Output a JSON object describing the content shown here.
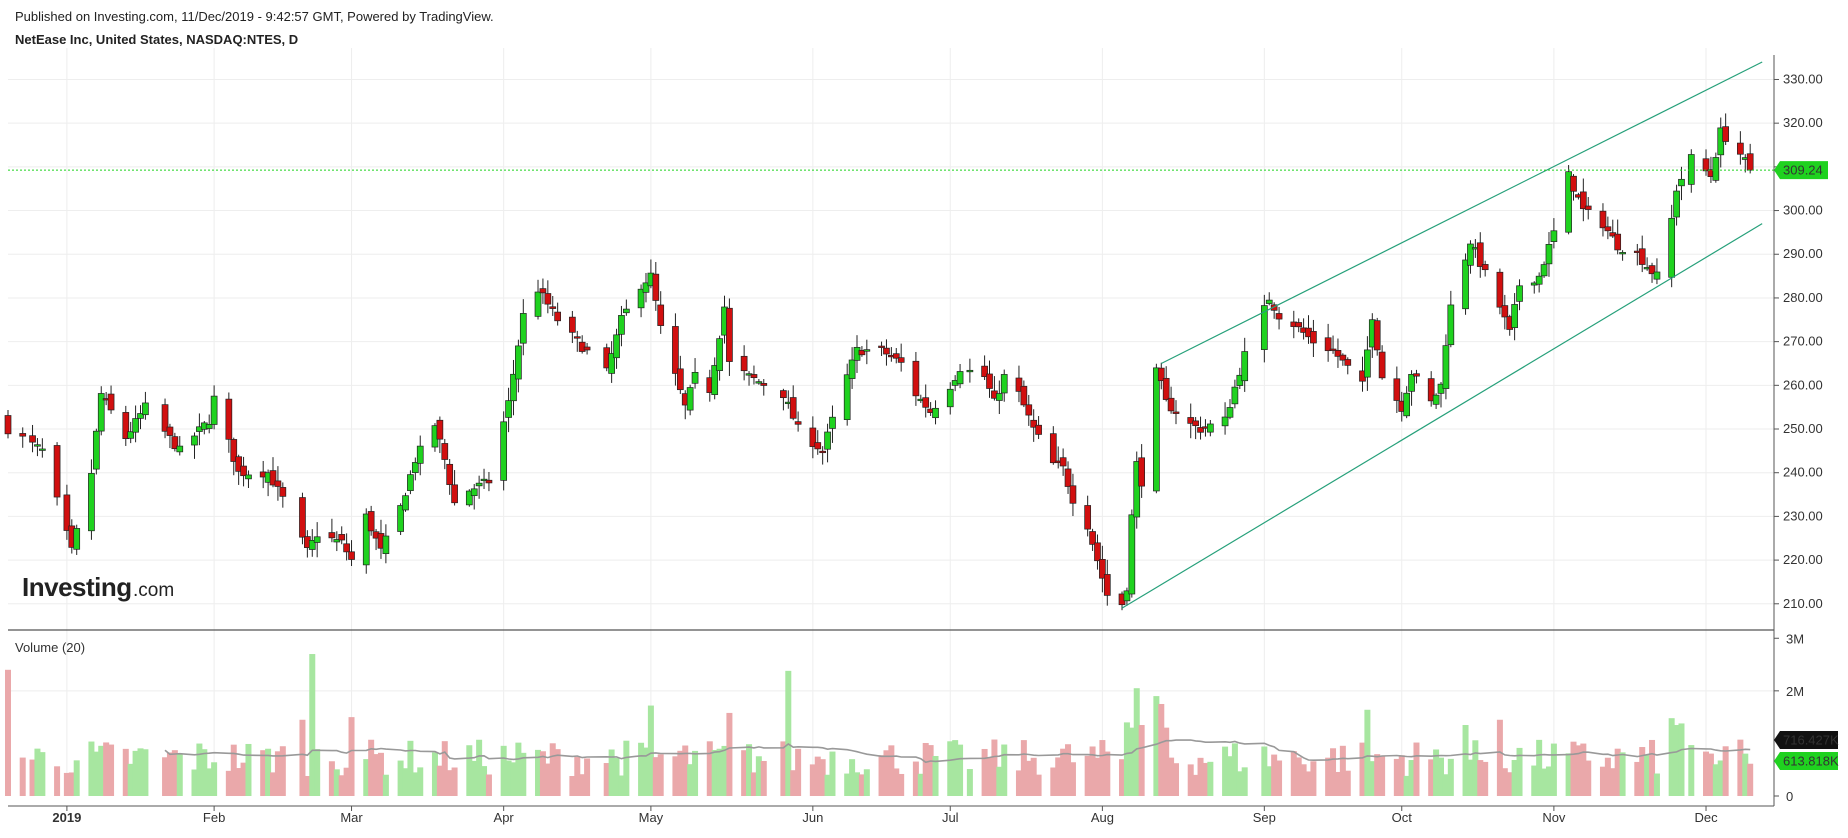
{
  "header": {
    "published": "Published on Investing.com, 11/Dec/2019 - 9:42:57 GMT, Powered by TradingView.",
    "symbol": "NetEase Inc, United States, NASDAQ:NTES, D"
  },
  "logo": {
    "main": "Investing",
    "suffix": ".com"
  },
  "colors": {
    "up": "#1fd21f",
    "down": "#d10f0f",
    "wick": "#222222",
    "vol_up": "#a7e6a0",
    "vol_down": "#eaa8aa",
    "ma": "#999999",
    "channel": "#26a07a",
    "last_price": "#1fd21f",
    "grid": "#eeeeee"
  },
  "chart_data": [
    {
      "type": "candlestick",
      "title": "NetEase Inc, United States, NASDAQ:NTES, D",
      "ylim": [
        204,
        334
      ],
      "yticks": [
        "210.00",
        "220.00",
        "230.00",
        "240.00",
        "250.00",
        "260.00",
        "270.00",
        "280.00",
        "290.00",
        "300.00",
        "310.00",
        "320.00",
        "330.00"
      ],
      "xticks": [
        {
          "label": "2019",
          "date": "2019-01-02"
        },
        {
          "label": "Feb",
          "date": "2019-02-01"
        },
        {
          "label": "Mar",
          "date": "2019-03-01"
        },
        {
          "label": "Apr",
          "date": "2019-04-01"
        },
        {
          "label": "May",
          "date": "2019-05-01"
        },
        {
          "label": "Jun",
          "date": "2019-06-03"
        },
        {
          "label": "Jul",
          "date": "2019-07-01"
        },
        {
          "label": "Aug",
          "date": "2019-08-01"
        },
        {
          "label": "Sep",
          "date": "2019-09-03"
        },
        {
          "label": "Oct",
          "date": "2019-10-01"
        },
        {
          "label": "Nov",
          "date": "2019-11-01"
        },
        {
          "label": "Dec",
          "date": "2019-12-02"
        }
      ],
      "first_date": "2018-12-21",
      "last_price": "309.24",
      "channel": [
        {
          "name": "upper",
          "from": [
            "2019-08-13",
            265
          ],
          "to": [
            "2019-12-11",
            334
          ]
        },
        {
          "name": "lower",
          "from": [
            "2019-08-05",
            209
          ],
          "to": [
            "2019-12-11",
            297
          ]
        }
      ],
      "anchors": [
        [
          "2018-12-21",
          250
        ],
        [
          "2018-12-28",
          245
        ],
        [
          "2019-01-03",
          222
        ],
        [
          "2019-01-07",
          240
        ],
        [
          "2019-01-09",
          258
        ],
        [
          "2019-01-14",
          248
        ],
        [
          "2019-01-18",
          255
        ],
        [
          "2019-01-25",
          245
        ],
        [
          "2019-01-31",
          252
        ],
        [
          "2019-02-01",
          257
        ],
        [
          "2019-02-06",
          240
        ],
        [
          "2019-02-12",
          240
        ],
        [
          "2019-02-15",
          234
        ],
        [
          "2019-02-20",
          222
        ],
        [
          "2019-02-22",
          226
        ],
        [
          "2019-02-27",
          224
        ],
        [
          "2019-03-01",
          220
        ],
        [
          "2019-03-04",
          230
        ],
        [
          "2019-03-07",
          222
        ],
        [
          "2019-03-11",
          232
        ],
        [
          "2019-03-14",
          243
        ],
        [
          "2019-03-18",
          251
        ],
        [
          "2019-03-20",
          243
        ],
        [
          "2019-03-22",
          233
        ],
        [
          "2019-03-25",
          236
        ],
        [
          "2019-03-29",
          238
        ],
        [
          "2019-04-02",
          256
        ],
        [
          "2019-04-05",
          276
        ],
        [
          "2019-04-08",
          282
        ],
        [
          "2019-04-12",
          275
        ],
        [
          "2019-04-16",
          270
        ],
        [
          "2019-04-22",
          263
        ],
        [
          "2019-04-25",
          275
        ],
        [
          "2019-04-29",
          283
        ],
        [
          "2019-05-01",
          285
        ],
        [
          "2019-05-03",
          273
        ],
        [
          "2019-05-06",
          262
        ],
        [
          "2019-05-08",
          255
        ],
        [
          "2019-05-10",
          262
        ],
        [
          "2019-05-13",
          259
        ],
        [
          "2019-05-16",
          278
        ],
        [
          "2019-05-17",
          265
        ],
        [
          "2019-05-21",
          262
        ],
        [
          "2019-05-28",
          258
        ],
        [
          "2019-05-31",
          250
        ],
        [
          "2019-06-05",
          245
        ],
        [
          "2019-06-07",
          252
        ],
        [
          "2019-06-10",
          262
        ],
        [
          "2019-06-12",
          268
        ],
        [
          "2019-06-17",
          268
        ],
        [
          "2019-06-21",
          265
        ],
        [
          "2019-06-24",
          258
        ],
        [
          "2019-06-27",
          254
        ],
        [
          "2019-07-01",
          260
        ],
        [
          "2019-07-03",
          264
        ],
        [
          "2019-07-08",
          262
        ],
        [
          "2019-07-10",
          256
        ],
        [
          "2019-07-12",
          262
        ],
        [
          "2019-07-15",
          258
        ],
        [
          "2019-07-18",
          250
        ],
        [
          "2019-07-22",
          242
        ],
        [
          "2019-07-24",
          241
        ],
        [
          "2019-07-26",
          234
        ],
        [
          "2019-07-29",
          228
        ],
        [
          "2019-07-31",
          220
        ],
        [
          "2019-08-02",
          212
        ],
        [
          "2019-08-05",
          210
        ],
        [
          "2019-08-06",
          214
        ],
        [
          "2019-08-07",
          230
        ],
        [
          "2019-08-08",
          242
        ],
        [
          "2019-08-09",
          238
        ],
        [
          "2019-08-12",
          263
        ],
        [
          "2019-08-13",
          260
        ],
        [
          "2019-08-14",
          256
        ],
        [
          "2019-08-19",
          251
        ],
        [
          "2019-08-21",
          250
        ],
        [
          "2019-08-26",
          252
        ],
        [
          "2019-08-30",
          267
        ],
        [
          "2019-09-04",
          280
        ],
        [
          "2019-09-06",
          276
        ],
        [
          "2019-09-09",
          274
        ],
        [
          "2019-09-13",
          270
        ],
        [
          "2019-09-17",
          268
        ],
        [
          "2019-09-20",
          264
        ],
        [
          "2019-09-23",
          260
        ],
        [
          "2019-09-25",
          276
        ],
        [
          "2019-09-27",
          262
        ],
        [
          "2019-10-01",
          255
        ],
        [
          "2019-10-03",
          263
        ],
        [
          "2019-10-07",
          256
        ],
        [
          "2019-10-09",
          260
        ],
        [
          "2019-10-10",
          270
        ],
        [
          "2019-10-11",
          278
        ],
        [
          "2019-10-15",
          293
        ],
        [
          "2019-10-17",
          288
        ],
        [
          "2019-10-21",
          278
        ],
        [
          "2019-10-23",
          272
        ],
        [
          "2019-10-25",
          283
        ],
        [
          "2019-10-29",
          285
        ],
        [
          "2019-11-01",
          295
        ],
        [
          "2019-11-04",
          308
        ],
        [
          "2019-11-07",
          300
        ],
        [
          "2019-11-11",
          297
        ],
        [
          "2019-11-14",
          292
        ],
        [
          "2019-11-18",
          290
        ],
        [
          "2019-11-21",
          286
        ],
        [
          "2019-11-22",
          285
        ],
        [
          "2019-11-25",
          298
        ],
        [
          "2019-11-26",
          305
        ],
        [
          "2019-11-29",
          312
        ],
        [
          "2019-12-03",
          308
        ],
        [
          "2019-12-05",
          318
        ],
        [
          "2019-12-09",
          313
        ],
        [
          "2019-12-11",
          309.24
        ]
      ]
    },
    {
      "type": "volume",
      "title": "Volume (20)",
      "yticks": [
        "3M",
        "2M",
        "0"
      ],
      "ylim": [
        0,
        3100000
      ],
      "ma_label": "716.427K",
      "last_volume": "613.818K",
      "spikes": [
        [
          "2018-12-21",
          2400000
        ],
        [
          "2019-02-19",
          1450000
        ],
        [
          "2019-02-21",
          2700000
        ],
        [
          "2019-03-01",
          1500000
        ],
        [
          "2019-05-01",
          1720000
        ],
        [
          "2019-05-17",
          1580000
        ],
        [
          "2019-05-29",
          2380000
        ],
        [
          "2019-08-06",
          1400000
        ],
        [
          "2019-08-07",
          1300000
        ],
        [
          "2019-08-08",
          2050000
        ],
        [
          "2019-08-09",
          1350000
        ],
        [
          "2019-08-12",
          1900000
        ],
        [
          "2019-08-13",
          1750000
        ],
        [
          "2019-08-14",
          1300000
        ],
        [
          "2019-09-24",
          1640000
        ],
        [
          "2019-10-14",
          1350000
        ],
        [
          "2019-10-21",
          1450000
        ],
        [
          "2019-11-25",
          1480000
        ],
        [
          "2019-11-26",
          1350000
        ],
        [
          "2019-11-27",
          1380000
        ]
      ]
    }
  ]
}
